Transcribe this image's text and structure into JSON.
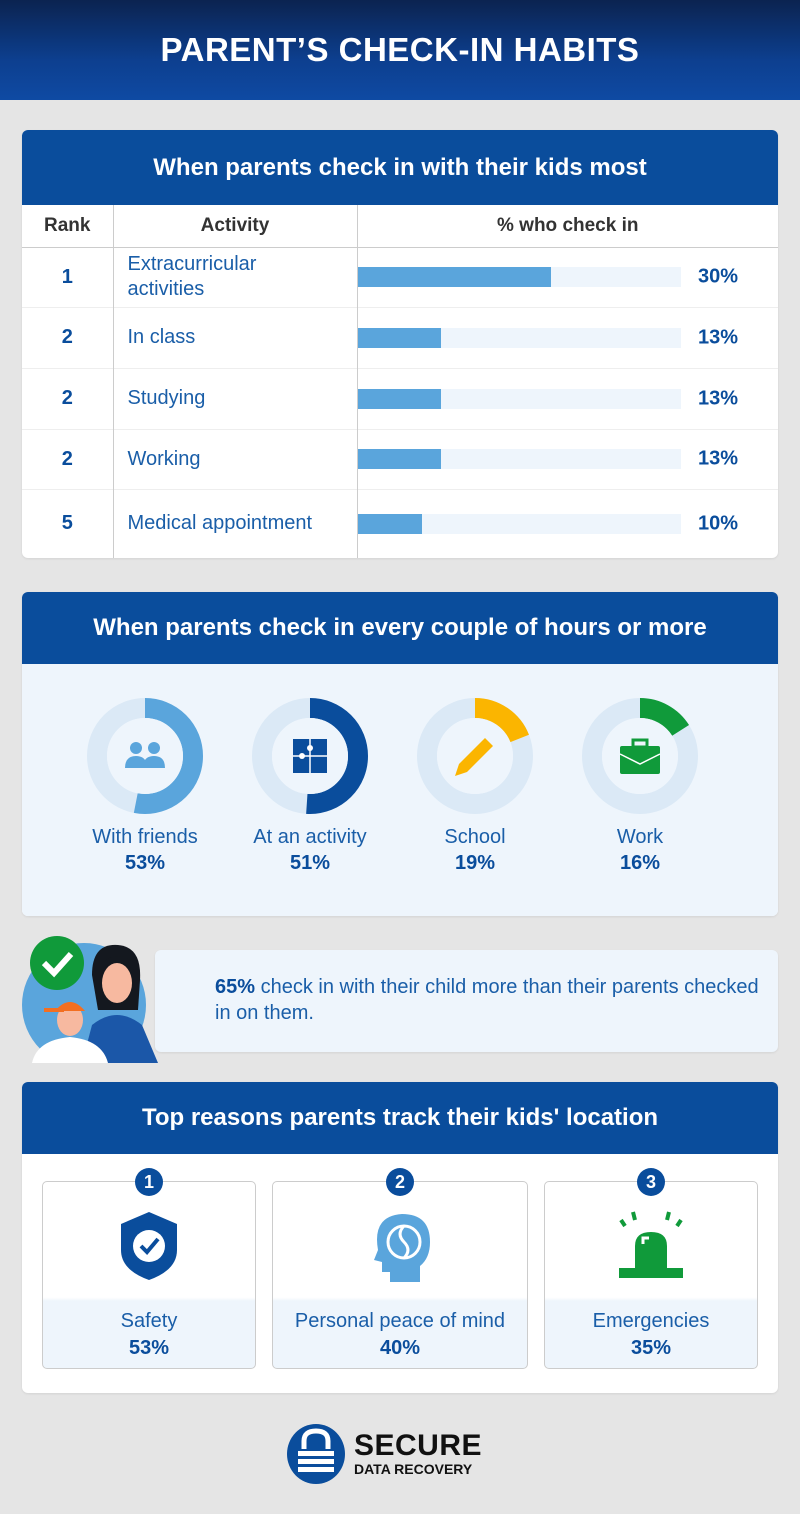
{
  "title": "PARENT’S CHECK-IN HABITS",
  "colors": {
    "primary": "#0a4d9c",
    "bar": "#5aa5dc",
    "track": "#eef5fc",
    "friends": "#5aa5dc",
    "activity": "#0a4d9c",
    "school": "#fbb500",
    "work": "#109a3a"
  },
  "chart_data": [
    {
      "type": "bar",
      "title": "When parents check in with their kids most",
      "columns": [
        "Rank",
        "Activity",
        "% who check in"
      ],
      "rows": [
        {
          "rank": "1",
          "activity": "Extracurricular activities",
          "value": 30,
          "label": "30%"
        },
        {
          "rank": "2",
          "activity": "In class",
          "value": 13,
          "label": "13%"
        },
        {
          "rank": "2",
          "activity": "Studying",
          "value": 13,
          "label": "13%"
        },
        {
          "rank": "2",
          "activity": "Working",
          "value": 13,
          "label": "13%"
        },
        {
          "rank": "5",
          "activity": "Medical appointment",
          "value": 10,
          "label": "10%"
        }
      ]
    },
    {
      "type": "pie",
      "title": "When parents check in every couple of hours or more",
      "items": [
        {
          "label": "With friends",
          "value": 53,
          "text": "53%",
          "icon": "people-icon"
        },
        {
          "label": "At an activity",
          "value": 51,
          "text": "51%",
          "icon": "puzzle-icon"
        },
        {
          "label": "School",
          "value": 19,
          "text": "19%",
          "icon": "pencil-icon"
        },
        {
          "label": "Work",
          "value": 16,
          "text": "16%",
          "icon": "briefcase-icon"
        }
      ]
    }
  ],
  "callout": {
    "highlight": "65%",
    "text": " check in with their child more than their parents checked in on them."
  },
  "reasons": {
    "title": "Top reasons parents track their kids' location",
    "items": [
      {
        "rank": "1",
        "label": "Safety",
        "value": "53%",
        "icon": "shield-check-icon"
      },
      {
        "rank": "2",
        "label": "Personal peace of mind",
        "value": "40%",
        "icon": "head-yin-yang-icon"
      },
      {
        "rank": "3",
        "label": "Emergencies",
        "value": "35%",
        "icon": "siren-icon"
      }
    ]
  },
  "logo": {
    "line1": "SECURE",
    "line2": "DATA RECOVERY"
  }
}
